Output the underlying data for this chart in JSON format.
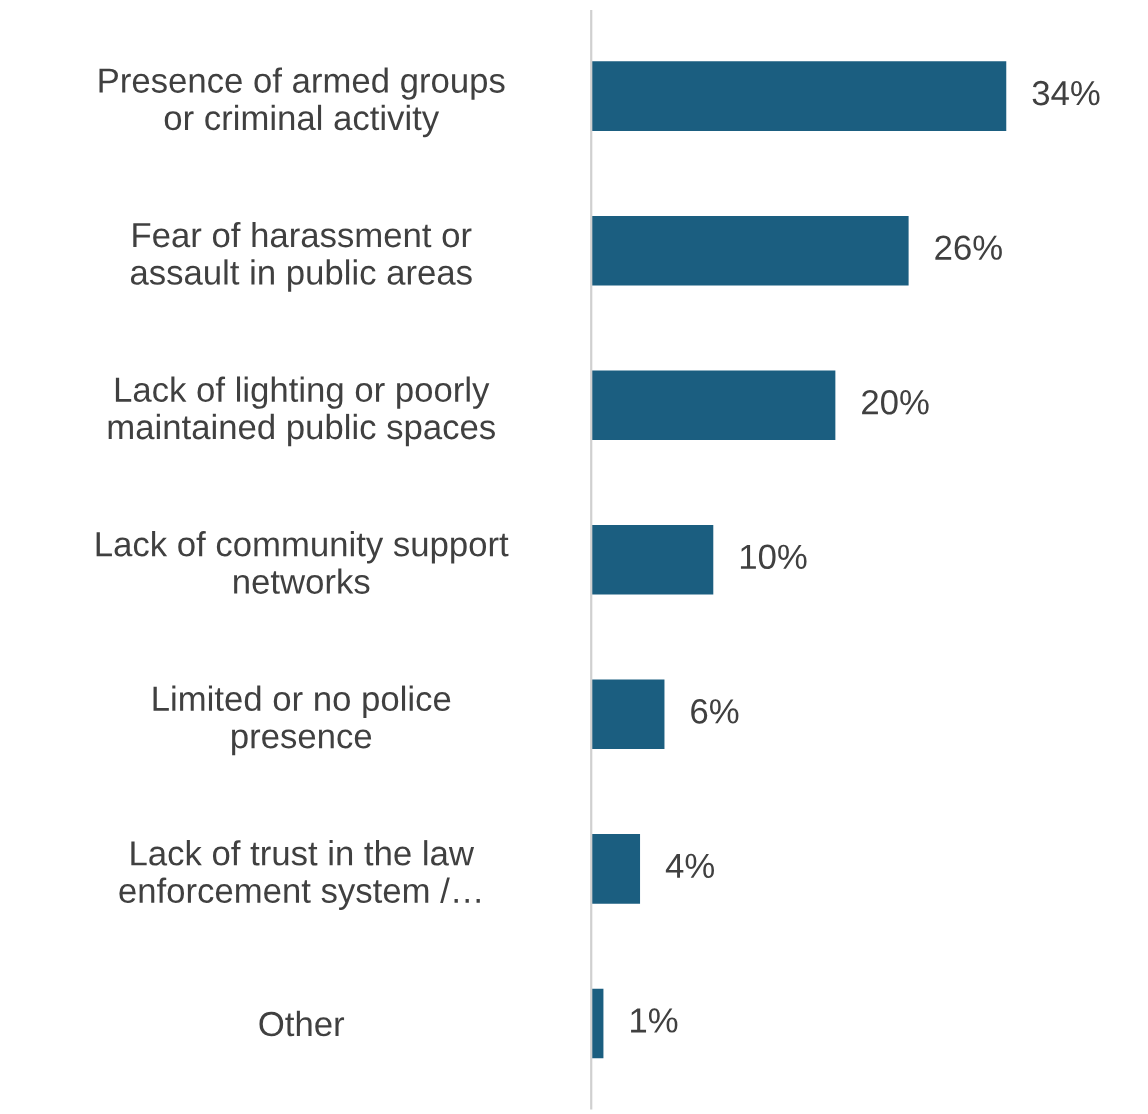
{
  "chart_data": {
    "type": "bar",
    "orientation": "horizontal",
    "categories": [
      "Presence of armed groups\nor criminal activity",
      "Fear of harassment or\nassault in public areas",
      "Lack of lighting or poorly\nmaintained public spaces",
      "Lack of community support\nnetworks",
      "Limited or no police\npresence",
      "Lack of trust in the law\nenforcement system /…",
      "Other"
    ],
    "values": [
      34,
      26,
      20,
      10,
      6,
      4,
      1
    ],
    "value_labels": [
      "34%",
      "26%",
      "20%",
      "10%",
      "6%",
      "4%",
      "1%"
    ],
    "color": "#1b5e80",
    "grid": false,
    "legend": false
  }
}
